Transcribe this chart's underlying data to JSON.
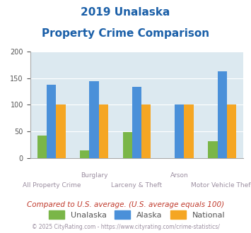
{
  "title_line1": "2019 Unalaska",
  "title_line2": "Property Crime Comparison",
  "categories": [
    "All Property Crime",
    "Burglary",
    "Larceny & Theft",
    "Arson",
    "Motor Vehicle Theft"
  ],
  "tick_labels_row1": [
    "",
    "Burglary",
    "",
    "Arson",
    ""
  ],
  "tick_labels_row2": [
    "All Property Crime",
    "",
    "Larceny & Theft",
    "",
    "Motor Vehicle Theft"
  ],
  "unalaska_values": [
    43,
    15,
    49,
    0,
    32
  ],
  "alaska_values": [
    138,
    144,
    133,
    100,
    163
  ],
  "national_values": [
    100,
    100,
    100,
    100,
    100
  ],
  "unalaska_color": "#7ab648",
  "alaska_color": "#4a90d9",
  "national_color": "#f5a623",
  "ylim": [
    0,
    200
  ],
  "yticks": [
    0,
    50,
    100,
    150,
    200
  ],
  "background_color": "#dce9f0",
  "title_color": "#1a5fa8",
  "tick_label_color": "#9b8ea0",
  "footnote1": "Compared to U.S. average. (U.S. average equals 100)",
  "footnote2": "© 2025 CityRating.com - https://www.cityrating.com/crime-statistics/",
  "footnote1_color": "#c0392b",
  "footnote2_color": "#9b8ea0",
  "legend_labels": [
    "Unalaska",
    "Alaska",
    "National"
  ],
  "bar_width": 0.22
}
